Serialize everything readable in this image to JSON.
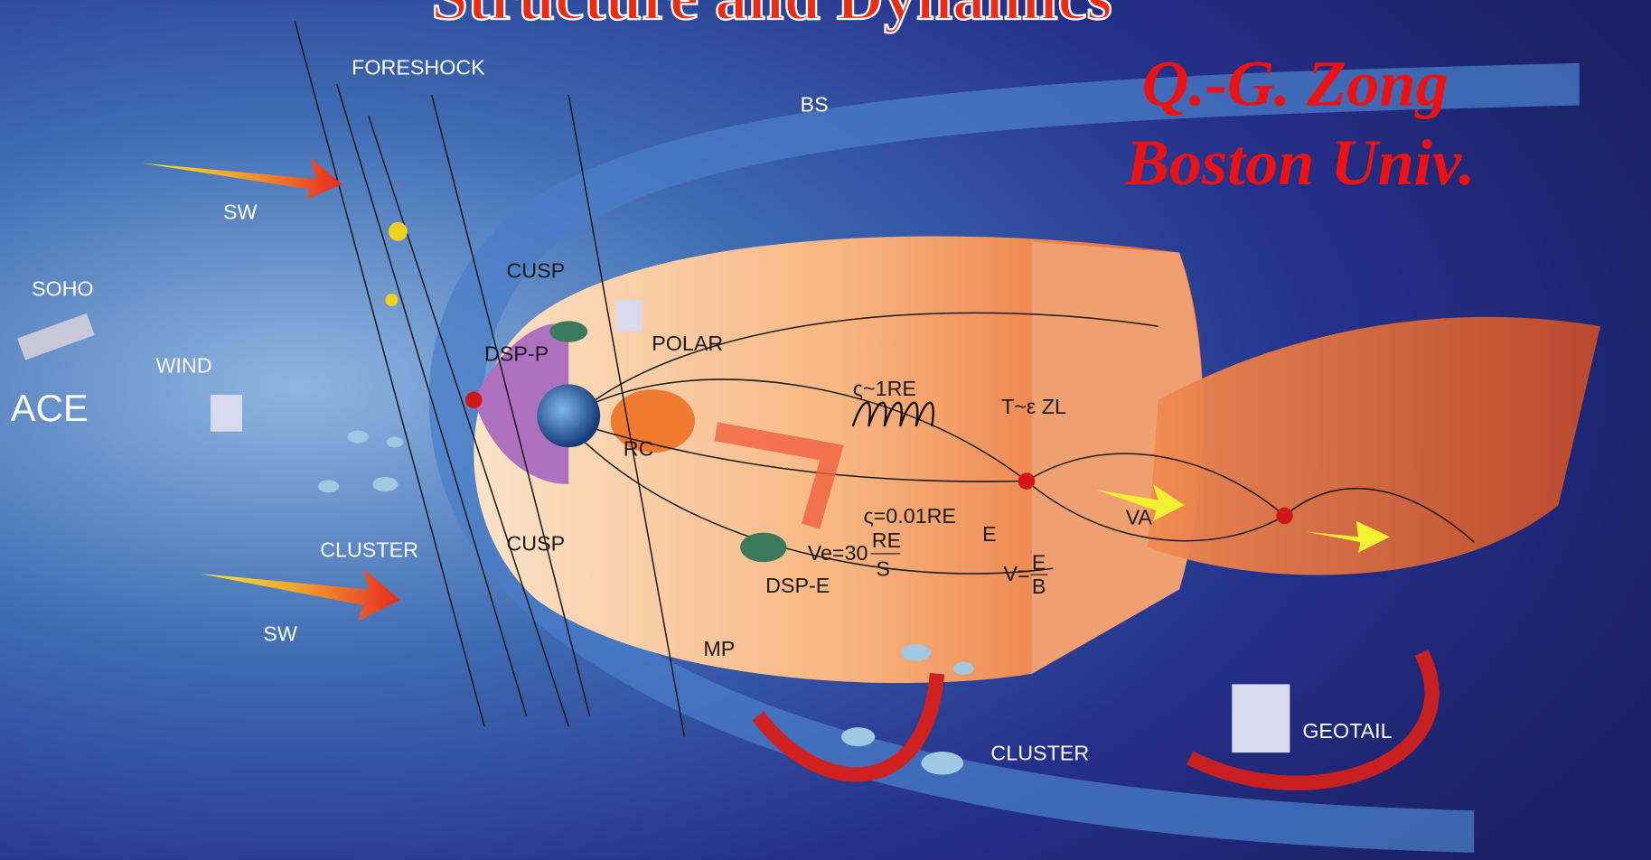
{
  "title": "Structure and Dynamics",
  "author": {
    "name": "Q.-G. Zong",
    "affiliation": "Boston Univ."
  },
  "solar_wind": [
    "SW",
    "SW"
  ],
  "spacecraft": [
    "SOHO",
    "ACE",
    "WIND",
    "CLUSTER",
    "POLAR",
    "CLUSTER",
    "GEOTAIL"
  ],
  "regions": [
    "FORESHOCK",
    "BS",
    "CUSP",
    "CUSP",
    "DSP-P",
    "RC",
    "MP",
    "DSP-E"
  ],
  "formulas": {
    "gyro_large": "ς~1RE",
    "gyro_small": "ς=0.01RE",
    "time": "T~ε ZL",
    "alfven": "VA",
    "field": "E",
    "drift": {
      "lhs": "V=",
      "num": "E",
      "den": "B"
    },
    "velocity": {
      "lhs": "Ve=30",
      "num": "RE",
      "den": "S"
    }
  }
}
